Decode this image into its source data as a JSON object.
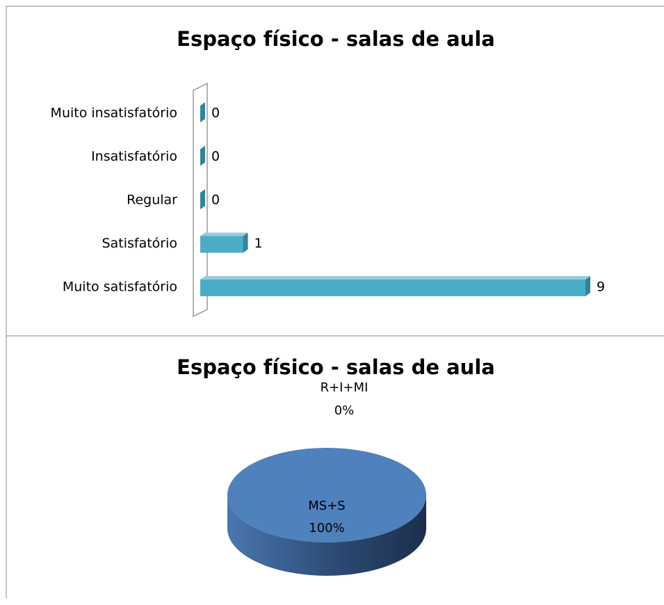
{
  "chart_data": [
    {
      "type": "bar",
      "orientation": "horizontal",
      "title": "Espaço físico - salas de aula",
      "categories": [
        "Muito insatisfatório",
        "Insatisfatório",
        "Regular",
        "Satisfatório",
        "Muito satisfatório"
      ],
      "values": [
        0,
        0,
        0,
        1,
        9
      ],
      "color": "#4bacc6",
      "xlim": [
        0,
        9
      ]
    },
    {
      "type": "pie",
      "title": "Espaço físico - salas de aula",
      "categories": [
        "MS+S",
        "R+I+MI"
      ],
      "values": [
        100,
        0
      ],
      "value_labels": [
        "100%",
        "0%"
      ],
      "color": "#4f81bd"
    }
  ]
}
